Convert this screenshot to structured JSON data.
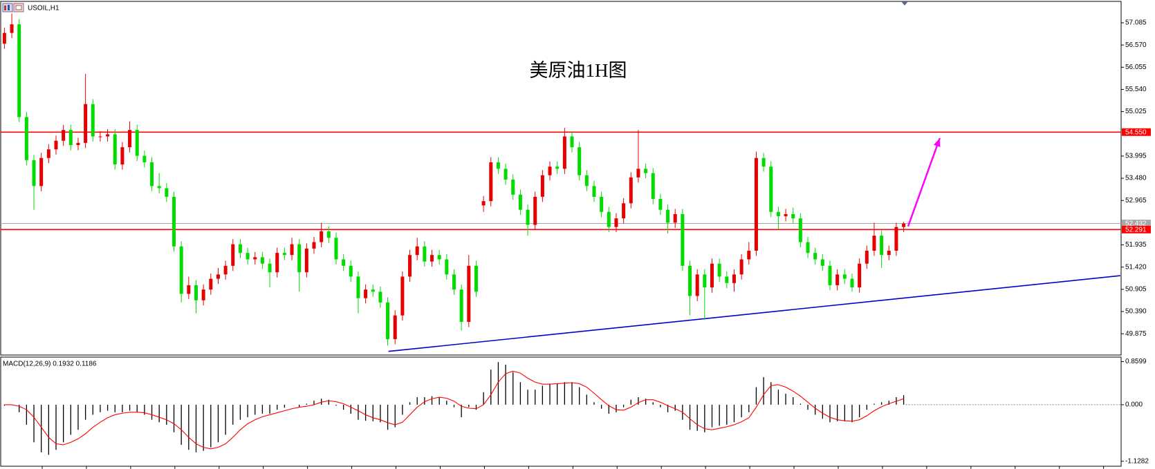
{
  "chart_data": {
    "type": "candlestick",
    "title": "USOIL,H1",
    "annotation": "美原油1H图",
    "annotation_color": "#ff2020",
    "up_color": "#e60000",
    "down_color": "#00dc00",
    "open": [
      56.6,
      56.85,
      57.05,
      54.9,
      53.9,
      53.3,
      53.95,
      54.15,
      54.35,
      54.6,
      54.25,
      54.3,
      55.2,
      54.45,
      54.45,
      54.5,
      53.8,
      54.2,
      54.6,
      54.0,
      53.85,
      53.3,
      53.25,
      53.05,
      51.9,
      50.8,
      51.0,
      50.65,
      50.9,
      51.15,
      51.25,
      51.45,
      51.95,
      51.75,
      51.6,
      51.65,
      51.5,
      51.3,
      51.75,
      51.7,
      51.95,
      51.3,
      51.85,
      52.0,
      52.25,
      52.1,
      51.6,
      51.45,
      51.2,
      50.7,
      50.9,
      50.85,
      50.6,
      49.75,
      50.3,
      51.2,
      51.7,
      51.9,
      51.55,
      51.7,
      51.6,
      51.25,
      50.9,
      50.15,
      51.45,
      52.85,
      52.95,
      53.85,
      53.7,
      53.45,
      53.1,
      52.75,
      52.4,
      53.05,
      53.55,
      53.75,
      53.7,
      54.45,
      54.2,
      53.55,
      53.3,
      53.05,
      52.7,
      52.35,
      52.55,
      52.9,
      53.5,
      53.7,
      53.6,
      53.0,
      52.75,
      52.45,
      52.65,
      51.45,
      50.75,
      51.25,
      50.95,
      51.5,
      51.2,
      51.05,
      51.25,
      51.6,
      51.8,
      53.95,
      53.75,
      52.7,
      52.6,
      52.65,
      52.55,
      52.0,
      51.75,
      51.6,
      51.45,
      51.0,
      51.25,
      51.15,
      50.95,
      51.5,
      51.8,
      52.15,
      51.7,
      51.8,
      52.35
    ],
    "high": [
      56.97,
      57.3,
      57.17,
      55.02,
      54.02,
      54.07,
      54.27,
      54.47,
      54.72,
      54.72,
      54.42,
      55.9,
      55.32,
      54.57,
      54.62,
      54.62,
      54.32,
      54.8,
      54.72,
      54.12,
      53.97,
      53.6,
      53.37,
      53.17,
      52.02,
      51.2,
      51.12,
      51.02,
      51.27,
      51.4,
      51.57,
      52.07,
      52.07,
      51.87,
      51.77,
      51.77,
      51.62,
      51.87,
      51.87,
      52.1,
      52.07,
      51.97,
      52.12,
      52.45,
      52.37,
      52.22,
      51.72,
      51.57,
      51.32,
      51.02,
      51.02,
      50.97,
      50.72,
      50.42,
      51.32,
      51.82,
      52.1,
      52.02,
      51.82,
      51.82,
      51.72,
      51.37,
      51.02,
      51.7,
      51.57,
      53.07,
      53.97,
      53.97,
      53.82,
      53.57,
      53.22,
      52.87,
      53.17,
      53.67,
      53.87,
      53.87,
      54.65,
      54.57,
      54.32,
      53.67,
      53.42,
      53.17,
      52.82,
      52.67,
      53.02,
      53.62,
      54.6,
      53.82,
      53.72,
      53.12,
      52.87,
      52.77,
      52.77,
      51.57,
      51.37,
      51.37,
      51.62,
      51.62,
      51.32,
      51.37,
      51.72,
      52.0,
      54.1,
      54.07,
      53.87,
      52.82,
      52.77,
      52.8,
      52.67,
      52.12,
      51.87,
      51.72,
      51.57,
      51.37,
      51.37,
      51.27,
      51.62,
      51.92,
      52.45,
      52.27,
      51.92,
      52.45,
      52.47
    ],
    "low": [
      56.48,
      56.73,
      54.78,
      53.78,
      52.75,
      53.18,
      53.83,
      54.03,
      54.23,
      54.13,
      54.13,
      54.18,
      54.33,
      54.33,
      54.33,
      53.68,
      53.68,
      54.08,
      53.88,
      53.73,
      53.18,
      53.13,
      52.93,
      51.78,
      50.6,
      50.68,
      50.35,
      50.53,
      50.78,
      51.03,
      51.13,
      51.33,
      51.63,
      51.48,
      51.48,
      51.38,
      50.95,
      51.18,
      51.58,
      51.58,
      50.85,
      51.18,
      51.73,
      51.88,
      51.98,
      51.48,
      51.33,
      51.08,
      50.35,
      50.58,
      50.73,
      50.48,
      49.6,
      49.63,
      50.18,
      51.08,
      51.58,
      51.43,
      51.43,
      51.48,
      51.13,
      50.78,
      49.95,
      50.03,
      50.73,
      52.7,
      52.83,
      53.58,
      53.33,
      52.98,
      52.63,
      52.15,
      52.28,
      52.93,
      53.43,
      53.58,
      53.58,
      54.08,
      53.43,
      53.18,
      52.93,
      52.58,
      52.23,
      52.23,
      52.43,
      52.78,
      53.38,
      53.48,
      52.88,
      52.63,
      52.2,
      52.33,
      51.33,
      50.3,
      50.63,
      50.2,
      50.83,
      51.08,
      50.93,
      50.85,
      51.13,
      51.48,
      51.68,
      53.63,
      52.58,
      52.3,
      52.48,
      52.43,
      51.88,
      51.63,
      51.48,
      51.33,
      50.88,
      50.88,
      51.03,
      50.85,
      50.83,
      51.38,
      51.68,
      51.4,
      51.58,
      51.68,
      52.23
    ],
    "close": [
      56.85,
      57.05,
      54.9,
      53.9,
      53.3,
      53.95,
      54.15,
      54.35,
      54.6,
      54.25,
      54.3,
      55.2,
      54.45,
      54.45,
      54.5,
      53.8,
      54.2,
      54.6,
      54.0,
      53.85,
      53.3,
      53.25,
      53.05,
      51.9,
      50.8,
      51.0,
      50.65,
      50.9,
      51.15,
      51.25,
      51.45,
      51.95,
      51.75,
      51.6,
      51.65,
      51.5,
      51.3,
      51.75,
      51.7,
      51.95,
      51.3,
      51.85,
      52.0,
      52.25,
      52.1,
      51.6,
      51.45,
      51.2,
      50.7,
      50.9,
      50.85,
      50.6,
      49.75,
      50.3,
      51.2,
      51.7,
      51.9,
      51.55,
      51.7,
      51.6,
      51.25,
      50.9,
      50.15,
      51.45,
      50.85,
      52.95,
      53.85,
      53.7,
      53.45,
      53.1,
      52.75,
      52.4,
      53.05,
      53.55,
      53.75,
      53.7,
      54.45,
      54.2,
      53.55,
      53.3,
      53.05,
      52.7,
      52.35,
      52.55,
      52.9,
      53.5,
      53.7,
      53.6,
      53.0,
      52.75,
      52.45,
      52.65,
      51.45,
      50.75,
      51.25,
      50.95,
      51.5,
      51.2,
      51.05,
      51.25,
      51.6,
      51.8,
      53.95,
      53.75,
      52.7,
      52.6,
      52.65,
      52.55,
      52.0,
      51.75,
      51.6,
      51.45,
      51.0,
      51.25,
      51.15,
      50.95,
      51.5,
      51.8,
      52.15,
      51.7,
      51.8,
      52.35,
      52.43
    ],
    "ylim": [
      49.381,
      57.579
    ],
    "yticks": [
      57.085,
      {
        "value": 56.57,
        "label": "56.570"
      },
      56.055,
      {
        "value": 55.54,
        "label": "55.540"
      },
      55.025,
      53.995,
      {
        "value": 53.48,
        "label": "53.480"
      },
      52.965,
      51.935,
      {
        "value": 51.42,
        "label": "51.420"
      },
      50.905,
      {
        "value": 50.39,
        "label": "50.390"
      },
      49.875
    ],
    "levels": [
      {
        "value": 54.55,
        "label": "54.550",
        "color": "#ff0000"
      },
      {
        "value": 52.432,
        "label": "52.432",
        "color": "#a8a8a8"
      },
      {
        "value": 52.291,
        "label": "52.291",
        "color": "#ff0000"
      }
    ],
    "trendline": {
      "x": [
        52.1,
        151.4
      ],
      "values": [
        49.466,
        51.222
      ],
      "color": "#0000cc"
    },
    "arrow": {
      "x": [
        122.6,
        126.9
      ],
      "values": [
        52.364,
        54.41
      ],
      "color": "#ff00ff"
    },
    "macd": {
      "title": "MACD(12,26,9) 0.1932 0.1186",
      "hist_color": "#000000",
      "signal_color": "#ff0000",
      "histogram": [
        -0.02,
        0.0,
        -0.15,
        -0.4,
        -0.75,
        -0.95,
        -1.0,
        -0.9,
        -0.75,
        -0.6,
        -0.5,
        -0.3,
        -0.2,
        -0.15,
        -0.12,
        -0.15,
        -0.15,
        -0.12,
        -0.15,
        -0.2,
        -0.3,
        -0.35,
        -0.4,
        -0.55,
        -0.8,
        -0.9,
        -0.95,
        -0.92,
        -0.85,
        -0.75,
        -0.6,
        -0.4,
        -0.3,
        -0.25,
        -0.2,
        -0.18,
        -0.18,
        -0.1,
        -0.06,
        0.0,
        -0.05,
        0.02,
        0.08,
        0.12,
        0.1,
        -0.02,
        -0.1,
        -0.18,
        -0.3,
        -0.32,
        -0.33,
        -0.35,
        -0.5,
        -0.45,
        -0.2,
        0.05,
        0.15,
        0.15,
        0.17,
        0.15,
        0.08,
        -0.05,
        -0.25,
        -0.05,
        -0.1,
        0.25,
        0.7,
        0.85,
        0.8,
        0.65,
        0.45,
        0.3,
        0.3,
        0.38,
        0.42,
        0.42,
        0.45,
        0.45,
        0.35,
        0.2,
        0.05,
        -0.08,
        -0.18,
        -0.15,
        -0.05,
        0.1,
        0.15,
        0.12,
        0.05,
        -0.05,
        -0.15,
        -0.12,
        -0.3,
        -0.5,
        -0.52,
        -0.55,
        -0.45,
        -0.42,
        -0.4,
        -0.35,
        -0.25,
        -0.15,
        0.35,
        0.55,
        0.45,
        0.3,
        0.22,
        0.15,
        0.02,
        -0.1,
        -0.2,
        -0.28,
        -0.35,
        -0.33,
        -0.33,
        -0.35,
        -0.25,
        -0.1,
        0.02,
        0.05,
        0.08,
        0.15,
        0.19
      ],
      "signal": [
        0.0,
        0.0,
        -0.03,
        -0.1,
        -0.25,
        -0.45,
        -0.65,
        -0.78,
        -0.8,
        -0.75,
        -0.68,
        -0.58,
        -0.45,
        -0.35,
        -0.26,
        -0.2,
        -0.17,
        -0.15,
        -0.15,
        -0.16,
        -0.2,
        -0.25,
        -0.3,
        -0.38,
        -0.5,
        -0.65,
        -0.78,
        -0.85,
        -0.88,
        -0.85,
        -0.78,
        -0.65,
        -0.5,
        -0.38,
        -0.3,
        -0.24,
        -0.2,
        -0.16,
        -0.12,
        -0.08,
        -0.05,
        -0.03,
        0.0,
        0.05,
        0.08,
        0.06,
        0.02,
        -0.05,
        -0.12,
        -0.2,
        -0.26,
        -0.3,
        -0.36,
        -0.4,
        -0.35,
        -0.2,
        -0.05,
        0.06,
        0.12,
        0.15,
        0.13,
        0.07,
        -0.03,
        -0.07,
        -0.08,
        0.0,
        0.2,
        0.45,
        0.62,
        0.67,
        0.63,
        0.53,
        0.45,
        0.41,
        0.41,
        0.42,
        0.43,
        0.44,
        0.42,
        0.35,
        0.23,
        0.1,
        -0.02,
        -0.1,
        -0.11,
        -0.05,
        0.04,
        0.1,
        0.1,
        0.05,
        -0.02,
        -0.08,
        -0.15,
        -0.28,
        -0.4,
        -0.48,
        -0.5,
        -0.47,
        -0.44,
        -0.4,
        -0.34,
        -0.26,
        -0.05,
        0.2,
        0.38,
        0.4,
        0.35,
        0.27,
        0.17,
        0.05,
        -0.07,
        -0.17,
        -0.25,
        -0.3,
        -0.32,
        -0.33,
        -0.3,
        -0.22,
        -0.12,
        -0.04,
        0.02,
        0.07,
        0.12
      ],
      "ylim": [
        -1.224,
        0.933
      ],
      "yticks": [
        0.8599,
        {
          "value": 0,
          "label": "0.000"
        },
        -1.1282
      ]
    }
  }
}
